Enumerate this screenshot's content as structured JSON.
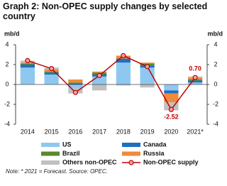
{
  "chart_data": {
    "type": "bar",
    "title": "Graph 2: Non-OPEC supply changes by selected country",
    "y_label": "mb/d",
    "y2_label": "mb/d",
    "note": "Note: * 2021 = Forecast. Source: OPEC.",
    "categories": [
      "2014",
      "2015",
      "2016",
      "2017",
      "2018",
      "2019",
      "2020",
      "2021*"
    ],
    "ylim": [
      -4,
      4
    ],
    "yticks": [
      -4,
      -2,
      0,
      2,
      4
    ],
    "y2lim": [
      -4,
      4
    ],
    "y2ticks": [
      -4,
      -2,
      0,
      2,
      4
    ],
    "grid": false,
    "series": [
      {
        "name": "US",
        "color": "#8ec8f0",
        "values": [
          1.7,
          1.0,
          -0.4,
          0.8,
          2.2,
          1.7,
          -0.6,
          0.2
        ]
      },
      {
        "name": "Canada",
        "color": "#1f6fc0",
        "values": [
          0.3,
          0.2,
          0.1,
          0.2,
          0.4,
          0.2,
          -0.3,
          0.2
        ]
      },
      {
        "name": "Brazil",
        "color": "#5a8a2a",
        "values": [
          0.1,
          0.1,
          0.1,
          0.2,
          0.0,
          0.2,
          0.0,
          0.1
        ]
      },
      {
        "name": "Russia",
        "color": "#f08a3c",
        "values": [
          0.1,
          0.2,
          0.3,
          0.1,
          0.3,
          0.1,
          -0.9,
          0.2
        ]
      },
      {
        "name": "Others non-OPEC",
        "color": "#c0c0c0",
        "values": [
          0.2,
          0.2,
          -0.5,
          -0.6,
          -0.1,
          -0.3,
          -0.8,
          0.1
        ]
      },
      {
        "name": "Non-OPEC supply",
        "type": "line",
        "color": "#c00000",
        "values": [
          2.4,
          1.6,
          -0.8,
          0.9,
          2.9,
          1.8,
          -2.52,
          0.7
        ],
        "value_labels": [
          null,
          null,
          null,
          null,
          null,
          null,
          "-2.52",
          "0.70"
        ]
      }
    ]
  }
}
